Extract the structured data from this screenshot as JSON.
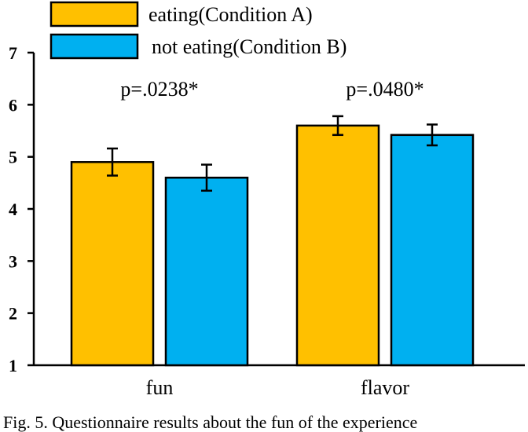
{
  "chart_data": {
    "type": "bar",
    "categories": [
      "fun",
      "flavor"
    ],
    "series": [
      {
        "name": "eating(Condition A)",
        "values": [
          4.9,
          5.6
        ],
        "errors": [
          0.26,
          0.18
        ],
        "color": "#FFC000"
      },
      {
        "name": "not eating(Condition B)",
        "values": [
          4.6,
          5.42
        ],
        "errors": [
          0.25,
          0.2
        ],
        "color": "#00B0F0"
      }
    ],
    "annotations": [
      "p=.0238*",
      "p=.0480*"
    ],
    "yticks": [
      "1",
      "2",
      "3",
      "4",
      "5",
      "6",
      "7"
    ],
    "ylim": [
      1,
      7
    ],
    "title": "",
    "xlabel": "",
    "ylabel": "",
    "grid": false,
    "legend_position": "top"
  },
  "caption": "Fig. 5. Questionnaire results about the fun of the experience"
}
